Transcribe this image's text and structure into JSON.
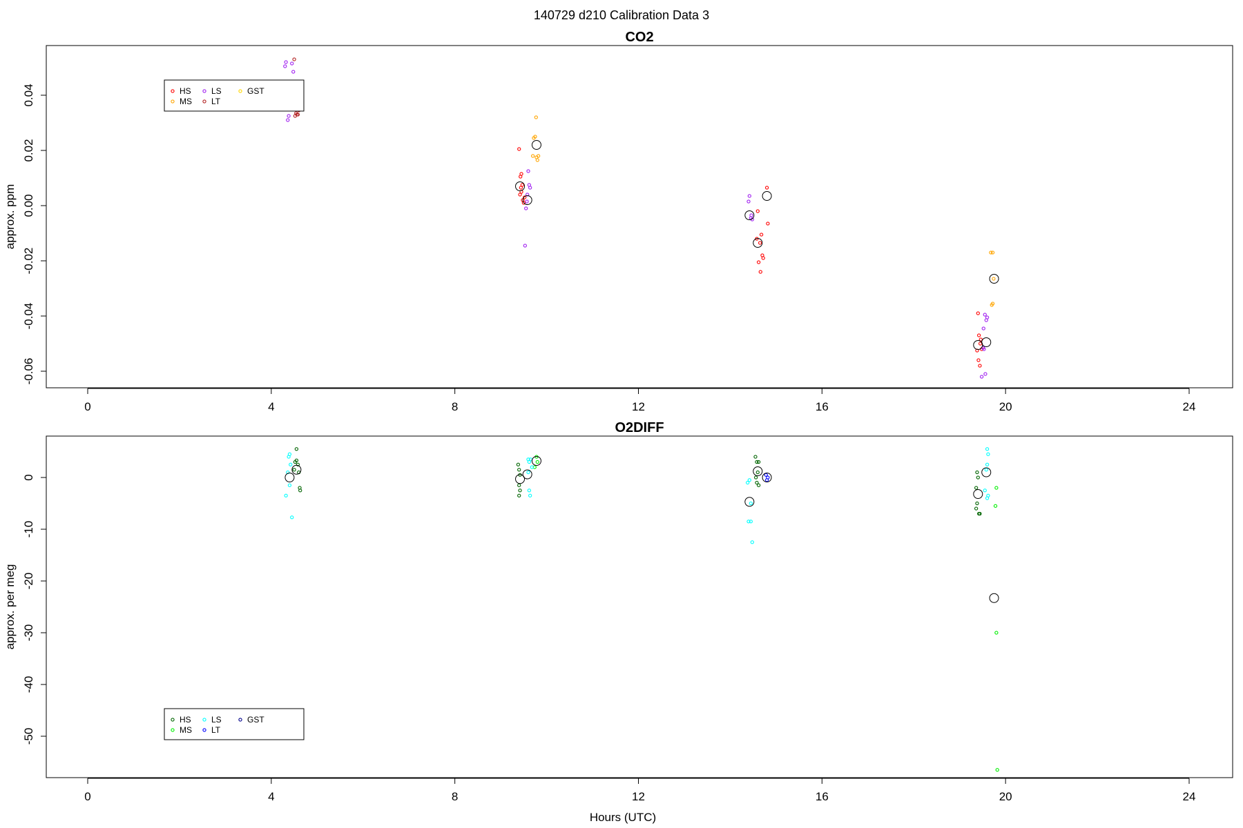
{
  "figure": {
    "title": "140729   d210   Calibration Data 3",
    "xlabel": "Hours (UTC)"
  },
  "chart_data": [
    {
      "type": "scatter",
      "title": "CO2",
      "xlabel": "",
      "ylabel": "approx. ppm",
      "xlim": [
        0,
        24
      ],
      "ylim": [
        -0.066,
        0.058
      ],
      "x_ticks": [
        0,
        4,
        8,
        12,
        16,
        20,
        24
      ],
      "x_tick_labels": [
        "0",
        "4",
        "8",
        "12",
        "16",
        "20",
        "24"
      ],
      "y_ticks": [
        0.04,
        0.02,
        0.0,
        -0.02,
        -0.04,
        -0.06
      ],
      "y_tick_labels": [
        "0.04",
        "0.02",
        "0.00",
        "-0.02",
        "-0.04",
        "-0.06"
      ],
      "grid": false,
      "legend_position": "top-left",
      "legend": [
        {
          "name": "HS",
          "color": "#ff0000"
        },
        {
          "name": "MS",
          "color": "#ffa500"
        },
        {
          "name": "LS",
          "color": "#a020f0"
        },
        {
          "name": "LT",
          "color": "#b22222"
        },
        {
          "name": "GST",
          "color": "#ffd700"
        }
      ],
      "series": [
        {
          "name": "HS",
          "color": "#ff0000",
          "points": [
            [
              9.4,
              0.0205
            ],
            [
              9.43,
              0.0105
            ],
            [
              9.45,
              0.0115
            ],
            [
              9.47,
              0.0075
            ],
            [
              9.42,
              0.004
            ],
            [
              9.45,
              0.005
            ],
            [
              9.48,
              0.002
            ],
            [
              9.5,
              0.001
            ],
            [
              9.52,
              0.003
            ],
            [
              9.44,
              0.0065
            ],
            [
              14.6,
              -0.002
            ],
            [
              14.65,
              -0.0135
            ],
            [
              14.68,
              -0.0105
            ],
            [
              14.7,
              -0.018
            ],
            [
              14.72,
              -0.019
            ],
            [
              14.62,
              -0.0205
            ],
            [
              14.66,
              -0.024
            ],
            [
              14.58,
              -0.012
            ],
            [
              14.8,
              0.0065
            ],
            [
              14.82,
              -0.0065
            ],
            [
              19.4,
              -0.039
            ],
            [
              19.42,
              -0.047
            ],
            [
              19.45,
              -0.05
            ],
            [
              19.48,
              -0.052
            ],
            [
              19.41,
              -0.056
            ],
            [
              19.44,
              -0.058
            ],
            [
              19.38,
              -0.0525
            ],
            [
              19.46,
              -0.0485
            ]
          ]
        },
        {
          "name": "MS",
          "color": "#ffa500",
          "points": [
            [
              9.72,
              0.0245
            ],
            [
              9.75,
              0.025
            ],
            [
              9.7,
              0.018
            ],
            [
              9.78,
              0.0175
            ],
            [
              9.8,
              0.0165
            ],
            [
              9.82,
              0.018
            ],
            [
              9.77,
              0.032
            ],
            [
              19.68,
              -0.017
            ],
            [
              19.72,
              -0.017
            ],
            [
              19.7,
              -0.036
            ],
            [
              19.72,
              -0.0355
            ],
            [
              19.74,
              -0.0265
            ]
          ]
        },
        {
          "name": "LS",
          "color": "#a020f0",
          "points": [
            [
              4.32,
              0.052
            ],
            [
              4.3,
              0.0505
            ],
            [
              4.45,
              0.0515
            ],
            [
              4.48,
              0.0485
            ],
            [
              4.38,
              0.0325
            ],
            [
              4.36,
              0.031
            ],
            [
              9.6,
              0.0125
            ],
            [
              9.62,
              0.0075
            ],
            [
              9.64,
              0.0065
            ],
            [
              9.58,
              0.004
            ],
            [
              9.57,
              0.0015
            ],
            [
              9.55,
              -0.001
            ],
            [
              9.53,
              -0.0145
            ],
            [
              14.42,
              0.0035
            ],
            [
              14.4,
              0.0015
            ],
            [
              14.45,
              -0.0045
            ],
            [
              14.48,
              -0.005
            ],
            [
              14.46,
              -0.0035
            ],
            [
              19.55,
              -0.0395
            ],
            [
              19.58,
              -0.0415
            ],
            [
              19.52,
              -0.0445
            ],
            [
              19.6,
              -0.0405
            ],
            [
              19.53,
              -0.052
            ],
            [
              19.56,
              -0.061
            ],
            [
              19.48,
              -0.062
            ],
            [
              19.51,
              -0.0515
            ]
          ]
        },
        {
          "name": "LT",
          "color": "#b22222",
          "points": [
            [
              4.5,
              0.053
            ],
            [
              4.54,
              0.0335
            ],
            [
              4.58,
              0.033
            ],
            [
              4.6,
              0.0345
            ],
            [
              4.52,
              0.0325
            ],
            [
              4.56,
              0.033
            ]
          ]
        },
        {
          "name": "GST",
          "color": "#ffd700",
          "points": []
        }
      ],
      "means": [
        [
          9.42,
          0.007
        ],
        [
          9.58,
          0.002
        ],
        [
          9.78,
          0.022
        ],
        [
          14.42,
          -0.0035
        ],
        [
          14.6,
          -0.0135
        ],
        [
          14.8,
          0.0035
        ],
        [
          19.4,
          -0.0505
        ],
        [
          19.58,
          -0.0495
        ],
        [
          19.75,
          -0.0265
        ]
      ]
    },
    {
      "type": "scatter",
      "title": "O2DIFF",
      "xlabel": "Hours (UTC)",
      "ylabel": "approx. per meg",
      "xlim": [
        0,
        24
      ],
      "ylim": [
        -58,
        8
      ],
      "x_ticks": [
        0,
        4,
        8,
        12,
        16,
        20,
        24
      ],
      "x_tick_labels": [
        "0",
        "4",
        "8",
        "12",
        "16",
        "20",
        "24"
      ],
      "y_ticks": [
        0,
        -10,
        -20,
        -30,
        -40,
        -50
      ],
      "y_tick_labels": [
        "0",
        "-10",
        "-20",
        "-30",
        "-40",
        "-50"
      ],
      "grid": false,
      "legend_position": "bottom-left",
      "legend": [
        {
          "name": "HS",
          "color": "#006400"
        },
        {
          "name": "MS",
          "color": "#00ee00"
        },
        {
          "name": "LS",
          "color": "#00ffff"
        },
        {
          "name": "LT",
          "color": "#0000ff"
        },
        {
          "name": "GST",
          "color": "#00008b"
        }
      ],
      "series": [
        {
          "name": "HS",
          "color": "#006400",
          "points": [
            [
              4.55,
              5.5
            ],
            [
              4.52,
              3.0
            ],
            [
              4.55,
              3.3
            ],
            [
              4.58,
              2.5
            ],
            [
              4.5,
              1.5
            ],
            [
              4.6,
              1.0
            ],
            [
              4.62,
              -2.0
            ],
            [
              4.63,
              -2.5
            ],
            [
              9.38,
              2.5
            ],
            [
              9.4,
              1.5
            ],
            [
              9.42,
              0.5
            ],
            [
              9.4,
              -1.5
            ],
            [
              9.42,
              -2.5
            ],
            [
              9.4,
              -3.5
            ],
            [
              14.55,
              4.0
            ],
            [
              14.58,
              3.0
            ],
            [
              14.62,
              3.0
            ],
            [
              14.6,
              1.0
            ],
            [
              14.56,
              0.0
            ],
            [
              14.62,
              -1.5
            ],
            [
              14.58,
              -1.0
            ],
            [
              19.38,
              1.0
            ],
            [
              19.4,
              0.0
            ],
            [
              19.36,
              -2.0
            ],
            [
              19.38,
              -5.0
            ],
            [
              19.36,
              -6.0
            ],
            [
              19.42,
              -7.0
            ],
            [
              19.44,
              -7.0
            ]
          ]
        },
        {
          "name": "MS",
          "color": "#00ee00",
          "points": [
            [
              9.78,
              4.0
            ],
            [
              9.8,
              3.0
            ],
            [
              9.74,
              2.0
            ],
            [
              19.8,
              -2.0
            ],
            [
              19.78,
              -5.5
            ],
            [
              19.8,
              -30.0
            ],
            [
              19.82,
              -56.5
            ]
          ]
        },
        {
          "name": "LS",
          "color": "#00ffff",
          "points": [
            [
              4.4,
              4.5
            ],
            [
              4.38,
              4.0
            ],
            [
              4.42,
              2.5
            ],
            [
              4.36,
              1.0
            ],
            [
              4.4,
              -1.5
            ],
            [
              4.32,
              -3.5
            ],
            [
              4.45,
              -7.7
            ],
            [
              9.6,
              3.5
            ],
            [
              9.62,
              3.0
            ],
            [
              9.65,
              3.5
            ],
            [
              9.68,
              2.0
            ],
            [
              9.6,
              1.0
            ],
            [
              9.62,
              -2.5
            ],
            [
              9.64,
              -3.5
            ],
            [
              14.38,
              -1.0
            ],
            [
              14.42,
              -0.5
            ],
            [
              14.45,
              -5.0
            ],
            [
              14.4,
              -8.5
            ],
            [
              14.45,
              -8.5
            ],
            [
              14.48,
              -12.5
            ],
            [
              19.6,
              5.5
            ],
            [
              19.62,
              4.5
            ],
            [
              19.6,
              2.5
            ],
            [
              19.58,
              1.5
            ],
            [
              19.55,
              -2.5
            ],
            [
              19.6,
              -4.0
            ],
            [
              19.62,
              -3.5
            ]
          ]
        },
        {
          "name": "LT",
          "color": "#0000ff",
          "points": [
            [
              14.78,
              0.5
            ],
            [
              14.8,
              -0.5
            ],
            [
              14.82,
              0.0
            ]
          ]
        },
        {
          "name": "GST",
          "color": "#00008b",
          "points": []
        }
      ],
      "means": [
        [
          4.4,
          0.0
        ],
        [
          4.55,
          1.5
        ],
        [
          9.42,
          -0.3
        ],
        [
          9.58,
          0.6
        ],
        [
          9.78,
          3.2
        ],
        [
          14.42,
          -4.7
        ],
        [
          14.6,
          1.2
        ],
        [
          14.8,
          0.0
        ],
        [
          19.4,
          -3.2
        ],
        [
          19.58,
          1.0
        ],
        [
          19.75,
          -23.3
        ]
      ]
    }
  ]
}
